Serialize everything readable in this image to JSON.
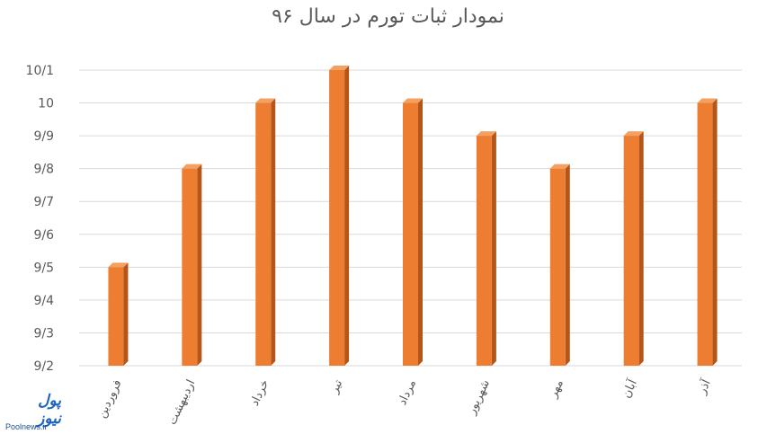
{
  "chart_data": {
    "type": "bar",
    "title": "نمودار ثبات تورم در سال ۹۶",
    "categories": [
      "فروردین",
      "اردیبهشت",
      "خرداد",
      "تیر",
      "مرداد",
      "شهریور",
      "مهر",
      "آبان",
      "آذر"
    ],
    "values": [
      9.5,
      9.8,
      10.0,
      10.1,
      10.0,
      9.9,
      9.8,
      9.9,
      10.0
    ],
    "y_ticks": [
      "9/2",
      "9/3",
      "9/4",
      "9/5",
      "9/6",
      "9/7",
      "9/8",
      "9/9",
      "10",
      "10/1"
    ],
    "ylim": [
      9.2,
      10.1
    ],
    "grid": true,
    "bar_color": "#ED7D31",
    "bar_side_color": "#B4561A",
    "bar_top_color": "#F4A060",
    "xlabel": "",
    "ylabel": ""
  },
  "watermark": {
    "logo_text": "پول نیوز",
    "site": "Poolnews.ir"
  }
}
